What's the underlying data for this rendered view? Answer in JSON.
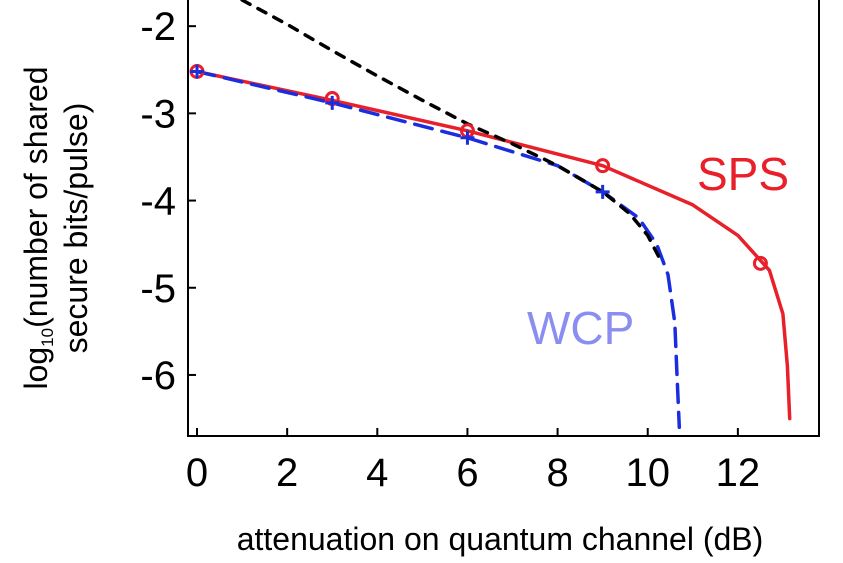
{
  "chart_data": {
    "type": "line",
    "xlabel": "attenuation on quantum channel (dB)",
    "ylabel_main": "log",
    "ylabel_subscript": "10",
    "ylabel_rest": "(number of shared",
    "ylabel_line2": "secure bits/pulse)",
    "xlim": [
      -0.2,
      13.8
    ],
    "ylim": [
      -6.7,
      -1.7
    ],
    "x_ticks": [
      0,
      2,
      4,
      6,
      8,
      10,
      12
    ],
    "y_ticks": [
      -2,
      -3,
      -4,
      -5,
      -6
    ],
    "x_tick_labels": [
      "0",
      "2",
      "4",
      "6",
      "8",
      "10",
      "12"
    ],
    "y_tick_labels": [
      "-2",
      "-3",
      "-4",
      "-5",
      "-6"
    ],
    "grid": false,
    "series": [
      {
        "name": "SPS",
        "color": "#e8202a",
        "style": "solid",
        "marker": "circle",
        "x": [
          0,
          3,
          6,
          9,
          11,
          12,
          12.7,
          13.0,
          13.1,
          13.15
        ],
        "y": [
          -2.52,
          -2.85,
          -3.2,
          -3.6,
          -4.05,
          -4.4,
          -4.8,
          -5.3,
          -5.9,
          -6.5
        ],
        "marker_x": [
          0,
          3,
          6,
          9,
          12.5
        ],
        "marker_y": [
          -2.52,
          -2.83,
          -3.2,
          -3.6,
          -4.72
        ]
      },
      {
        "name": "WCP",
        "color": "#1a2ee0",
        "label_color": "#8a8ef0",
        "style": "dashed",
        "marker": "plus",
        "x": [
          0,
          3,
          6,
          8,
          9,
          9.8,
          10.2,
          10.45,
          10.6,
          10.65,
          10.7
        ],
        "y": [
          -2.52,
          -2.88,
          -3.28,
          -3.6,
          -3.9,
          -4.2,
          -4.5,
          -4.85,
          -5.4,
          -6.0,
          -6.6
        ],
        "marker_x": [
          0,
          3,
          6,
          9
        ],
        "marker_y": [
          -2.52,
          -2.88,
          -3.28,
          -3.9
        ]
      },
      {
        "color": "#000000",
        "style": "dashed",
        "marker": "none",
        "x": [
          1.0,
          2,
          3,
          4,
          5,
          6,
          7,
          8,
          9,
          9.6,
          10.0,
          10.3
        ],
        "y": [
          -1.7,
          -1.98,
          -2.28,
          -2.57,
          -2.85,
          -3.12,
          -3.35,
          -3.6,
          -3.9,
          -4.15,
          -4.4,
          -4.7
        ]
      }
    ]
  }
}
